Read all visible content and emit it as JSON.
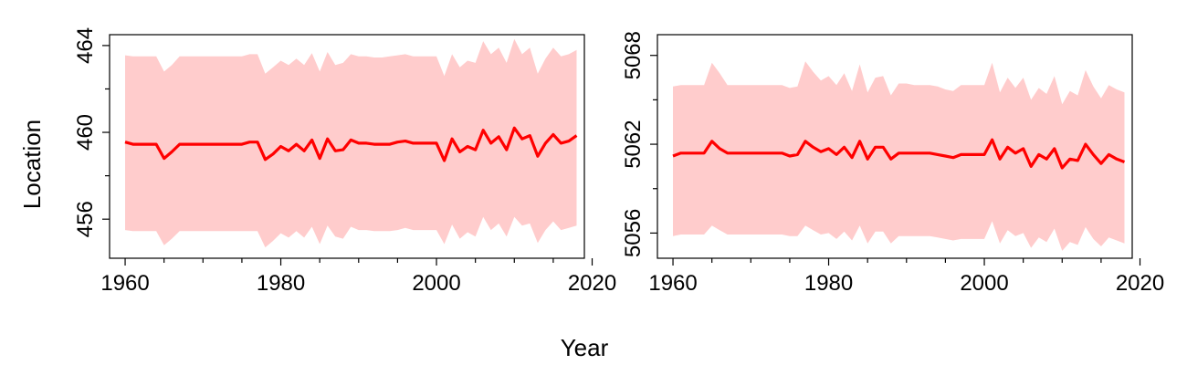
{
  "chart_data": {
    "xlabel": "Year",
    "ylabel": "Location",
    "colors": {
      "line": "#ff0000",
      "band": "#ffcccc",
      "axis": "#000000"
    },
    "panels": [
      {
        "type": "line",
        "xlim": [
          1958,
          2019
        ],
        "ylim": [
          454.2,
          464.5
        ],
        "xticks": [
          1960,
          1980,
          2000,
          2020
        ],
        "xtick_labels": [
          "1960",
          "1980",
          "2000",
          "2020"
        ],
        "yticks": [
          456,
          460,
          464
        ],
        "ytick_labels": [
          "456",
          "460",
          "464"
        ],
        "x": [
          1960,
          1961,
          1962,
          1963,
          1964,
          1965,
          1966,
          1967,
          1968,
          1969,
          1970,
          1971,
          1972,
          1973,
          1974,
          1975,
          1976,
          1977,
          1978,
          1979,
          1980,
          1981,
          1982,
          1983,
          1984,
          1985,
          1986,
          1987,
          1988,
          1989,
          1990,
          1991,
          1992,
          1993,
          1994,
          1995,
          1996,
          1997,
          1998,
          1999,
          2000,
          2001,
          2002,
          2003,
          2004,
          2005,
          2006,
          2007,
          2008,
          2009,
          2010,
          2011,
          2012,
          2013,
          2014,
          2015,
          2016,
          2017,
          2018
        ],
        "estimate": [
          459.55,
          459.45,
          459.45,
          459.45,
          459.45,
          458.8,
          459.1,
          459.45,
          459.45,
          459.45,
          459.45,
          459.45,
          459.45,
          459.45,
          459.45,
          459.45,
          459.55,
          459.55,
          458.75,
          459.0,
          459.35,
          459.15,
          459.45,
          459.15,
          459.65,
          458.8,
          459.7,
          459.15,
          459.2,
          459.65,
          459.5,
          459.5,
          459.45,
          459.45,
          459.45,
          459.55,
          459.6,
          459.5,
          459.5,
          459.5,
          459.5,
          458.7,
          459.7,
          459.1,
          459.35,
          459.2,
          460.1,
          459.5,
          459.8,
          459.2,
          460.2,
          459.7,
          459.85,
          458.9,
          459.5,
          459.9,
          459.5,
          459.6,
          459.85
        ],
        "upper": [
          463.55,
          463.5,
          463.5,
          463.5,
          463.5,
          462.8,
          463.1,
          463.5,
          463.5,
          463.5,
          463.5,
          463.5,
          463.5,
          463.5,
          463.5,
          463.5,
          463.6,
          463.6,
          462.7,
          463.0,
          463.3,
          463.1,
          463.4,
          463.1,
          463.65,
          462.8,
          463.7,
          463.1,
          463.2,
          463.6,
          463.5,
          463.5,
          463.45,
          463.45,
          463.5,
          463.55,
          463.6,
          463.5,
          463.5,
          463.5,
          463.5,
          462.6,
          463.6,
          463.0,
          463.3,
          463.2,
          464.2,
          463.6,
          463.9,
          463.2,
          464.3,
          463.6,
          463.9,
          462.7,
          463.4,
          463.9,
          463.5,
          463.6,
          463.8
        ],
        "lower": [
          455.5,
          455.45,
          455.45,
          455.45,
          455.45,
          454.8,
          455.1,
          455.45,
          455.45,
          455.45,
          455.45,
          455.45,
          455.45,
          455.45,
          455.45,
          455.45,
          455.45,
          455.45,
          454.7,
          455.0,
          455.35,
          455.15,
          455.45,
          455.15,
          455.65,
          454.85,
          455.7,
          455.2,
          455.1,
          455.65,
          455.5,
          455.5,
          455.45,
          455.45,
          455.45,
          455.5,
          455.6,
          455.5,
          455.5,
          455.5,
          455.5,
          454.85,
          455.75,
          455.1,
          455.4,
          455.2,
          456.1,
          455.5,
          455.8,
          455.2,
          456.1,
          455.7,
          455.8,
          454.9,
          455.5,
          455.9,
          455.5,
          455.6,
          455.7
        ]
      },
      {
        "type": "line",
        "xlim": [
          1958,
          2019
        ],
        "ylim": [
          5054.3,
          5069.4
        ],
        "xticks": [
          1960,
          1980,
          2000,
          2020
        ],
        "xtick_labels": [
          "1960",
          "1980",
          "2000",
          "2020"
        ],
        "yticks": [
          5056,
          5062,
          5068
        ],
        "ytick_labels": [
          "5056",
          "5062",
          "5068"
        ],
        "x": [
          1960,
          1961,
          1962,
          1963,
          1964,
          1965,
          1966,
          1967,
          1968,
          1969,
          1970,
          1971,
          1972,
          1973,
          1974,
          1975,
          1976,
          1977,
          1978,
          1979,
          1980,
          1981,
          1982,
          1983,
          1984,
          1985,
          1986,
          1987,
          1988,
          1989,
          1990,
          1991,
          1992,
          1993,
          1994,
          1995,
          1996,
          1997,
          1998,
          1999,
          2000,
          2001,
          2002,
          2003,
          2004,
          2005,
          2006,
          2007,
          2008,
          2009,
          2010,
          2011,
          2012,
          2013,
          2014,
          2015,
          2016,
          2017,
          2018
        ],
        "estimate": [
          5061.2,
          5061.4,
          5061.4,
          5061.4,
          5061.4,
          5062.2,
          5061.7,
          5061.4,
          5061.4,
          5061.4,
          5061.4,
          5061.4,
          5061.4,
          5061.4,
          5061.4,
          5061.2,
          5061.3,
          5062.2,
          5061.8,
          5061.5,
          5061.7,
          5061.3,
          5061.8,
          5061.1,
          5062.2,
          5061.0,
          5061.8,
          5061.8,
          5061.0,
          5061.4,
          5061.4,
          5061.4,
          5061.4,
          5061.4,
          5061.3,
          5061.2,
          5061.1,
          5061.3,
          5061.3,
          5061.3,
          5061.3,
          5062.3,
          5061.0,
          5061.8,
          5061.4,
          5061.7,
          5060.5,
          5061.3,
          5061.0,
          5061.7,
          5060.4,
          5061.0,
          5060.9,
          5062.0,
          5061.3,
          5060.7,
          5061.3,
          5061.0,
          5060.8
        ],
        "upper": [
          5065.9,
          5066.0,
          5066.0,
          5066.0,
          5066.0,
          5067.5,
          5066.8,
          5066.0,
          5066.0,
          5066.0,
          5066.0,
          5066.0,
          5066.0,
          5066.0,
          5066.0,
          5065.8,
          5065.9,
          5067.6,
          5066.9,
          5066.3,
          5066.6,
          5066.0,
          5066.8,
          5065.6,
          5067.4,
          5065.5,
          5066.5,
          5066.6,
          5065.3,
          5066.1,
          5066.1,
          5066.0,
          5066.0,
          5066.0,
          5065.9,
          5065.7,
          5065.6,
          5066.0,
          5066.0,
          5066.0,
          5066.0,
          5067.5,
          5065.5,
          5066.5,
          5065.8,
          5066.5,
          5065.0,
          5065.8,
          5065.4,
          5066.6,
          5064.7,
          5065.6,
          5065.3,
          5067.0,
          5065.9,
          5065.1,
          5066.0,
          5065.7,
          5065.5
        ],
        "lower": [
          5055.8,
          5055.9,
          5055.9,
          5055.9,
          5055.9,
          5056.5,
          5056.2,
          5055.9,
          5055.9,
          5055.9,
          5055.9,
          5055.9,
          5055.9,
          5055.9,
          5055.9,
          5055.8,
          5055.8,
          5056.5,
          5056.2,
          5055.9,
          5056.0,
          5055.6,
          5056.1,
          5055.5,
          5056.5,
          5055.3,
          5056.1,
          5056.1,
          5055.3,
          5055.8,
          5055.8,
          5055.8,
          5055.8,
          5055.8,
          5055.7,
          5055.6,
          5055.5,
          5055.6,
          5055.6,
          5055.6,
          5055.6,
          5056.8,
          5055.3,
          5056.2,
          5055.8,
          5056.0,
          5055.0,
          5055.7,
          5055.4,
          5056.3,
          5054.8,
          5055.4,
          5055.2,
          5056.4,
          5055.6,
          5055.1,
          5055.7,
          5055.5,
          5055.3
        ]
      }
    ]
  }
}
